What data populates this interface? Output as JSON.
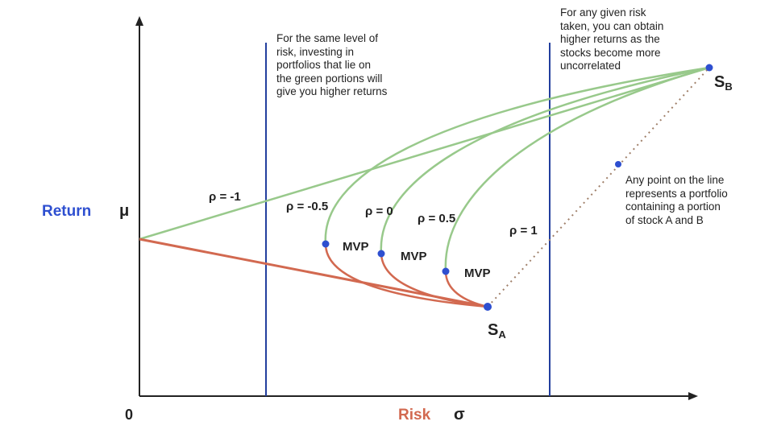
{
  "colors": {
    "axis": "#222222",
    "green_curve": "#98c98b",
    "red_curve": "#d26950",
    "dot": "#2e4fd0",
    "blue_label": "#2e4fd0",
    "red_label": "#d26950",
    "vline": "#233f9e",
    "dotted_line": "#a0806a",
    "text": "#222222"
  },
  "axes": {
    "y_label_word": "Return",
    "y_label_symbol": "μ",
    "x_label_word": "Risk",
    "x_label_symbol": "σ",
    "origin": "0"
  },
  "curves": {
    "rho_minus_1": "ρ = -1",
    "rho_minus_0_5": "ρ = -0.5",
    "rho_0": "ρ = 0",
    "rho_0_5": "ρ = 0.5",
    "rho_1": "ρ = 1"
  },
  "mvp": {
    "label_1": "MVP",
    "label_2": "MVP",
    "label_3": "MVP"
  },
  "points": {
    "stock_a_letter": "S",
    "stock_a_sub": "A",
    "stock_b_letter": "S",
    "stock_b_sub": "B"
  },
  "notes": {
    "same_risk": {
      "lines": [
        "For the same level of",
        "risk, investing in",
        "portfolios that lie on",
        "the green portions will",
        "give you higher returns"
      ]
    },
    "uncorrelated": {
      "lines": [
        "For any given risk",
        "taken, you can obtain",
        "higher returns as the",
        "stocks become more",
        "uncorrelated"
      ]
    },
    "line_portfolio": {
      "lines": [
        "Any point on the line",
        "represents a portfolio",
        "containing a portion",
        "of stock A and B"
      ]
    }
  }
}
